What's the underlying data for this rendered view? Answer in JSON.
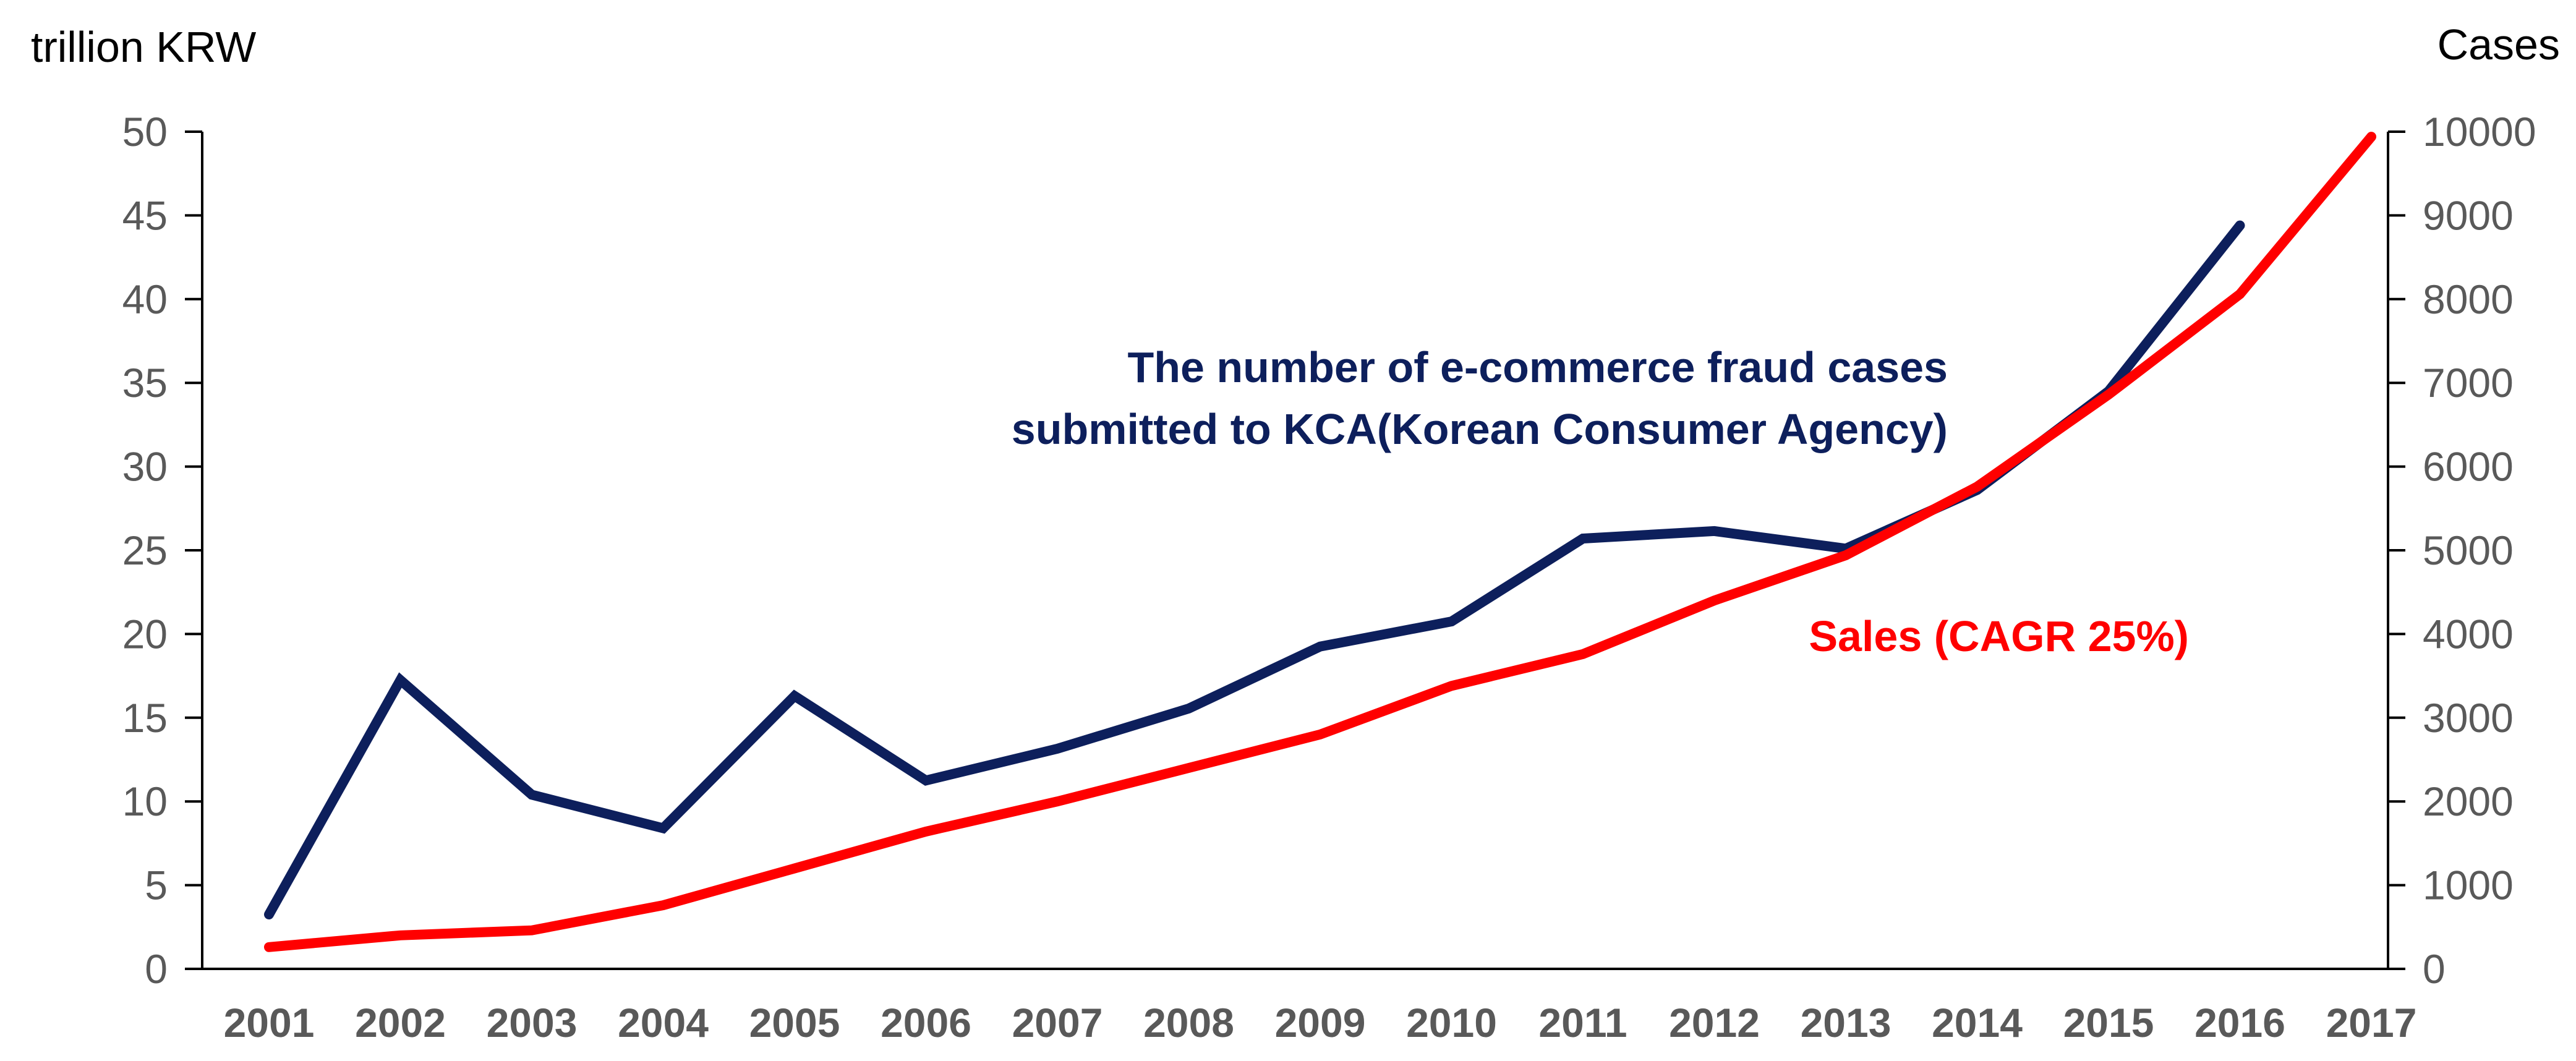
{
  "colors": {
    "cases": "#0d1f5c",
    "sales": "#ff0000",
    "tick_text": "#595959"
  },
  "chart_data": {
    "type": "line",
    "title": "",
    "x": [
      "2001",
      "2002",
      "2003",
      "2004",
      "2005",
      "2006",
      "2007",
      "2008",
      "2009",
      "2010",
      "2011",
      "2012",
      "2013",
      "2014",
      "2015",
      "2016",
      "2017"
    ],
    "y_left": {
      "label": "trillion KRW",
      "ylim": [
        0,
        50
      ],
      "ticks": [
        "0",
        "5",
        "10",
        "15",
        "20",
        "25",
        "30",
        "35",
        "40",
        "45",
        "50"
      ]
    },
    "y_right": {
      "label": "Cases",
      "ylim": [
        0,
        10000
      ],
      "ticks": [
        "0",
        "1000",
        "2000",
        "3000",
        "4000",
        "5000",
        "6000",
        "7000",
        "8000",
        "9000",
        "10000"
      ]
    },
    "grid": false,
    "legend": "none",
    "series": [
      {
        "name": "The number of e-commerce fraud cases submitted to KCA(Korean Consumer Agency)",
        "axis": "right",
        "color": "#0d1f5c",
        "values": [
          650,
          3450,
          2080,
          1680,
          3260,
          2250,
          2630,
          3110,
          3850,
          4150,
          5140,
          5230,
          5020,
          5720,
          6900,
          8880,
          null
        ]
      },
      {
        "name": "Sales (CAGR 25%)",
        "axis": "left",
        "color": "#ff0000",
        "values": [
          1.3,
          2.0,
          2.3,
          3.8,
          6.0,
          8.2,
          10.0,
          12.0,
          14.0,
          16.9,
          18.8,
          22.0,
          24.7,
          28.8,
          34.3,
          40.3,
          49.7
        ]
      }
    ],
    "annotations": {
      "cases_line1": "The number of e-commerce fraud cases",
      "cases_line2": "submitted to KCA(Korean Consumer Agency)",
      "sales": "Sales (CAGR 25%)"
    }
  }
}
